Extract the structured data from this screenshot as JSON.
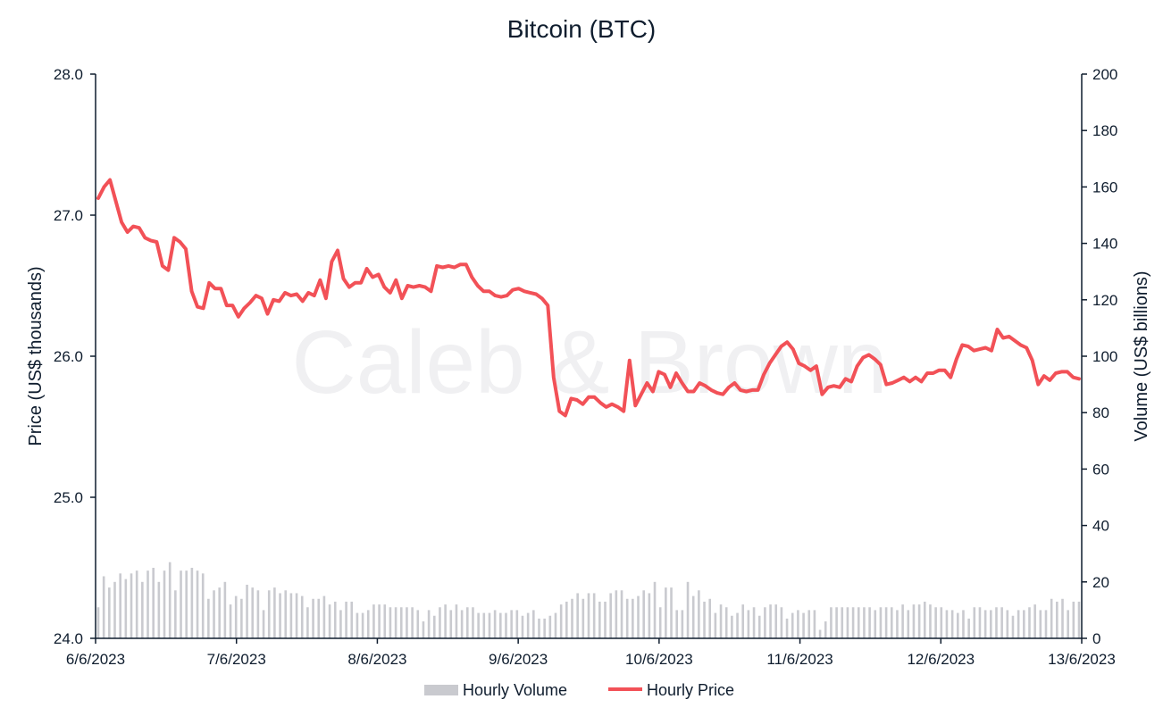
{
  "chart_data": {
    "type": "line",
    "title": "Bitcoin (BTC)",
    "watermark": "Caleb & Brown",
    "ylabel": "Price (US$ thousands)",
    "y2label": "Volume (US$ billions)",
    "ylim": [
      24.0,
      28.0
    ],
    "y2lim": [
      0,
      200
    ],
    "yticks": [
      "24.0",
      "25.0",
      "26.0",
      "27.0",
      "28.0"
    ],
    "y2ticks": [
      "0",
      "20",
      "40",
      "60",
      "80",
      "100",
      "120",
      "140",
      "160",
      "180",
      "200"
    ],
    "x_labels": [
      "6/6/2023",
      "7/6/2023",
      "8/6/2023",
      "9/6/2023",
      "10/6/2023",
      "11/6/2023",
      "12/6/2023",
      "13/6/2023"
    ],
    "xlim_days": [
      0,
      7
    ],
    "legend_position": "bottom",
    "series": [
      {
        "name": "Hourly Volume",
        "type": "bar",
        "axis": "right",
        "color": "#c9cacf",
        "values": [
          11,
          22,
          18,
          20,
          23,
          21,
          23,
          24,
          20,
          24,
          25,
          20,
          24,
          27,
          17,
          24,
          24,
          25,
          24,
          23,
          14,
          17,
          18,
          20,
          12,
          15,
          14,
          19,
          18,
          17,
          10,
          17,
          18,
          16,
          17,
          16,
          16,
          15,
          11,
          14,
          14,
          15,
          12,
          13,
          10,
          13,
          13,
          9,
          9,
          10,
          12,
          12,
          12,
          11,
          11,
          11,
          11,
          11,
          10,
          6,
          10,
          8,
          11,
          12,
          10,
          12,
          10,
          11,
          11,
          9,
          9,
          9,
          10,
          9,
          9,
          10,
          10,
          8,
          9,
          10,
          7,
          7,
          8,
          9,
          12,
          13,
          14,
          16,
          14,
          16,
          16,
          13,
          13,
          16,
          17,
          17,
          14,
          14,
          15,
          17,
          16,
          20,
          11,
          18,
          18,
          10,
          10,
          20,
          15,
          17,
          13,
          14,
          9,
          12,
          11,
          8,
          9,
          12,
          10,
          11,
          8,
          11,
          12,
          12,
          11,
          7,
          9,
          10,
          9,
          10,
          10,
          3,
          6,
          11,
          11,
          11,
          11,
          11,
          11,
          11,
          11,
          10,
          11,
          11,
          11,
          10,
          12,
          10,
          12,
          12,
          13,
          12,
          11,
          11,
          10,
          10,
          9,
          10,
          7,
          11,
          11,
          10,
          10,
          11,
          11,
          10,
          8,
          10,
          10,
          11,
          12,
          10,
          10,
          14,
          13,
          14,
          10,
          13,
          13
        ]
      },
      {
        "name": "Hourly Price",
        "type": "line",
        "axis": "left",
        "color": "#f25157",
        "values": [
          27.12,
          27.2,
          27.25,
          27.1,
          26.95,
          26.88,
          26.92,
          26.91,
          26.84,
          26.82,
          26.81,
          26.64,
          26.61,
          26.84,
          26.81,
          26.76,
          26.46,
          26.35,
          26.34,
          26.52,
          26.48,
          26.48,
          26.36,
          26.36,
          26.28,
          26.34,
          26.38,
          26.43,
          26.41,
          26.3,
          26.4,
          26.39,
          26.45,
          26.43,
          26.44,
          26.39,
          26.45,
          26.43,
          26.54,
          26.41,
          26.67,
          26.75,
          26.55,
          26.49,
          26.52,
          26.52,
          26.62,
          26.56,
          26.58,
          26.49,
          26.45,
          26.54,
          26.41,
          26.5,
          26.49,
          26.5,
          26.49,
          26.46,
          26.64,
          26.63,
          26.64,
          26.63,
          26.65,
          26.65,
          26.56,
          26.5,
          26.46,
          26.46,
          26.43,
          26.42,
          26.43,
          26.47,
          26.48,
          26.46,
          26.45,
          26.44,
          26.41,
          26.36,
          25.85,
          25.61,
          25.58,
          25.7,
          25.69,
          25.66,
          25.71,
          25.71,
          25.67,
          25.64,
          25.66,
          25.64,
          25.61,
          25.97,
          25.65,
          25.73,
          25.81,
          25.75,
          25.89,
          25.87,
          25.78,
          25.88,
          25.81,
          25.75,
          25.75,
          25.81,
          25.79,
          25.76,
          25.74,
          25.73,
          25.78,
          25.81,
          25.76,
          25.75,
          25.76,
          25.76,
          25.87,
          25.95,
          26.01,
          26.07,
          26.1,
          26.05,
          25.95,
          25.93,
          25.9,
          25.93,
          25.73,
          25.78,
          25.79,
          25.78,
          25.84,
          25.82,
          25.93,
          25.99,
          26.01,
          25.98,
          25.94,
          25.8,
          25.81,
          25.83,
          25.85,
          25.82,
          25.85,
          25.82,
          25.88,
          25.88,
          25.9,
          25.9,
          25.85,
          25.98,
          26.08,
          26.07,
          26.04,
          26.05,
          26.06,
          26.04,
          26.19,
          26.13,
          26.14,
          26.11,
          26.08,
          26.06,
          25.97,
          25.8,
          25.86,
          25.83,
          25.88,
          25.89,
          25.89,
          25.85,
          25.84
        ]
      }
    ]
  }
}
